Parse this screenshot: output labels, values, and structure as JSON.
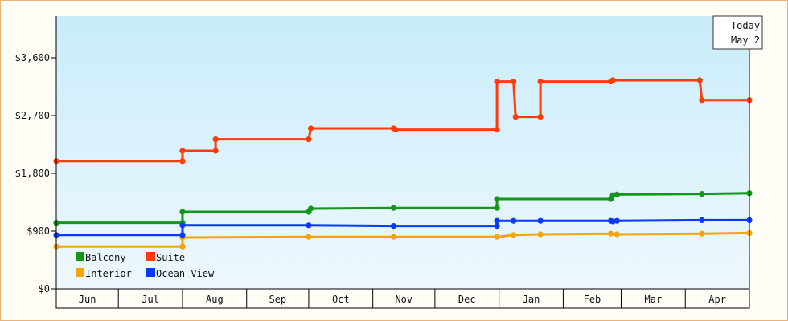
{
  "chart_data": {
    "type": "line",
    "step": true,
    "y_axis": {
      "ticks": [
        "$0",
        "$900",
        "$1,800",
        "$2,700",
        "$3,600"
      ],
      "tick_values": [
        0,
        900,
        1800,
        2700,
        3600
      ],
      "ylim": [
        0,
        4250
      ]
    },
    "x_axis": {
      "months": [
        "Jun",
        "Jul",
        "Aug",
        "Sep",
        "Oct",
        "Nov",
        "Dec",
        "Jan",
        "Feb",
        "Mar",
        "Apr"
      ]
    },
    "today": {
      "label": "Today",
      "date": "May 2"
    },
    "legend": {
      "placement": "bottom-left"
    },
    "series": [
      {
        "name": "Balcony",
        "color": "#13961a",
        "points": [
          {
            "x": "Jun 1",
            "y": 1030
          },
          {
            "x": "Aug 1",
            "y": 1030
          },
          {
            "x": "Aug 1",
            "y": 1200
          },
          {
            "x": "Oct 1",
            "y": 1200
          },
          {
            "x": "Oct 2",
            "y": 1250
          },
          {
            "x": "Nov 11",
            "y": 1260
          },
          {
            "x": "Dec 31",
            "y": 1260
          },
          {
            "x": "Dec 31",
            "y": 1400
          },
          {
            "x": "Feb 24",
            "y": 1400
          },
          {
            "x": "Feb 25",
            "y": 1460
          },
          {
            "x": "Feb 27",
            "y": 1470
          },
          {
            "x": "Apr 9",
            "y": 1480
          },
          {
            "x": "May 2",
            "y": 1490
          }
        ]
      },
      {
        "name": "Suite",
        "color": "#ff3b0a",
        "points": [
          {
            "x": "Jun 1",
            "y": 1990
          },
          {
            "x": "Aug 1",
            "y": 1990
          },
          {
            "x": "Aug 1",
            "y": 2150
          },
          {
            "x": "Aug 17",
            "y": 2150
          },
          {
            "x": "Aug 17",
            "y": 2330
          },
          {
            "x": "Oct 1",
            "y": 2330
          },
          {
            "x": "Oct 2",
            "y": 2500
          },
          {
            "x": "Nov 11",
            "y": 2500
          },
          {
            "x": "Nov 12",
            "y": 2480
          },
          {
            "x": "Dec 31",
            "y": 2480
          },
          {
            "x": "Dec 31",
            "y": 3230
          },
          {
            "x": "Jan 8",
            "y": 3230
          },
          {
            "x": "Jan 9",
            "y": 2680
          },
          {
            "x": "Jan 21",
            "y": 2680
          },
          {
            "x": "Jan 21",
            "y": 3230
          },
          {
            "x": "Feb 24",
            "y": 3230
          },
          {
            "x": "Feb 25",
            "y": 3250
          },
          {
            "x": "Apr 8",
            "y": 3250
          },
          {
            "x": "Apr 9",
            "y": 2940
          },
          {
            "x": "May 2",
            "y": 2940
          }
        ]
      },
      {
        "name": "Interior",
        "color": "#f5a40d",
        "points": [
          {
            "x": "Jun 1",
            "y": 660
          },
          {
            "x": "Aug 1",
            "y": 660
          },
          {
            "x": "Aug 1",
            "y": 800
          },
          {
            "x": "Oct 1",
            "y": 810
          },
          {
            "x": "Nov 11",
            "y": 810
          },
          {
            "x": "Dec 31",
            "y": 810
          },
          {
            "x": "Jan 8",
            "y": 840
          },
          {
            "x": "Jan 21",
            "y": 850
          },
          {
            "x": "Feb 24",
            "y": 860
          },
          {
            "x": "Feb 27",
            "y": 850
          },
          {
            "x": "Apr 9",
            "y": 860
          },
          {
            "x": "May 2",
            "y": 870
          }
        ]
      },
      {
        "name": "Ocean View",
        "color": "#0a38ff",
        "points": [
          {
            "x": "Jun 1",
            "y": 840
          },
          {
            "x": "Aug 1",
            "y": 840
          },
          {
            "x": "Aug 1",
            "y": 990
          },
          {
            "x": "Oct 1",
            "y": 990
          },
          {
            "x": "Nov 11",
            "y": 980
          },
          {
            "x": "Dec 31",
            "y": 980
          },
          {
            "x": "Dec 31",
            "y": 1060
          },
          {
            "x": "Jan 8",
            "y": 1060
          },
          {
            "x": "Jan 21",
            "y": 1060
          },
          {
            "x": "Feb 24",
            "y": 1060
          },
          {
            "x": "Feb 25",
            "y": 1050
          },
          {
            "x": "Feb 27",
            "y": 1060
          },
          {
            "x": "Apr 9",
            "y": 1070
          },
          {
            "x": "May 2",
            "y": 1070
          }
        ]
      }
    ]
  }
}
